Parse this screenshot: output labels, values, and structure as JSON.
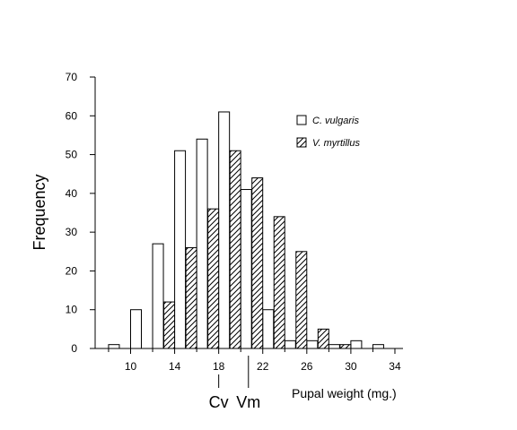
{
  "chart_data": {
    "type": "bar",
    "xlabel": "Pupal weight (mg.)",
    "ylabel": "Frequency",
    "ylim": [
      0,
      70
    ],
    "xlim": [
      7.5,
      35
    ],
    "yticks": [
      0,
      10,
      20,
      30,
      40,
      50,
      60,
      70
    ],
    "xticks": [
      10,
      14,
      18,
      22,
      26,
      30,
      34
    ],
    "bin_width": 2,
    "grid": false,
    "legend_position": "top-right",
    "series": [
      {
        "name": "C. vulgaris",
        "pattern": "open",
        "x": [
          9,
          11,
          13,
          15,
          17,
          19,
          21,
          23,
          25,
          27,
          29,
          31,
          33
        ],
        "values": [
          1,
          10,
          27,
          51,
          54,
          61,
          41,
          10,
          2,
          2,
          1,
          2,
          1
        ]
      },
      {
        "name": "V. myrtillus",
        "pattern": "hatched",
        "x": [
          13,
          15,
          17,
          19,
          21,
          23,
          25,
          27,
          29,
          31
        ],
        "values": [
          12,
          26,
          36,
          51,
          44,
          34,
          25,
          5,
          1,
          0
        ]
      }
    ],
    "markers": [
      {
        "label": "Cv",
        "x": 18
      },
      {
        "label": "Vm",
        "x": 20.7
      }
    ]
  },
  "colors": {
    "axis": "#000000",
    "bar_fill": "#ffffff",
    "hatch": "#000000"
  }
}
